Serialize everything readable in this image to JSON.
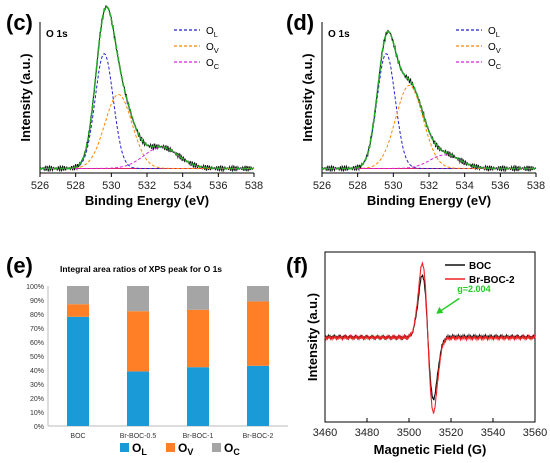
{
  "chart_data": [
    {
      "id": "c",
      "panel_label": "(c)",
      "type": "line",
      "title": "O 1s",
      "xlabel": "Binding Energy (eV)",
      "ylabel": "Intensity (a.u.)",
      "xlim": [
        526,
        538
      ],
      "xticks": [
        526,
        528,
        530,
        532,
        534,
        536,
        538
      ],
      "legend": [
        "O_L",
        "O_V",
        "O_C"
      ],
      "legend_loc": "top-right",
      "colors": {
        "raw": "#111111",
        "fit": "#22aa22",
        "O_L": "#2222cc",
        "O_V": "#ff8800",
        "O_C": "#dd22dd",
        "baseline": "#dd2266"
      },
      "peaks": [
        {
          "name": "O_L",
          "center": 529.6,
          "height": 0.76,
          "fwhm": 1.2
        },
        {
          "name": "O_V",
          "center": 530.4,
          "height": 0.49,
          "fwhm": 1.8
        },
        {
          "name": "O_C",
          "center": 532.8,
          "height": 0.14,
          "fwhm": 2.3
        }
      ]
    },
    {
      "id": "d",
      "panel_label": "(d)",
      "type": "line",
      "title": "O 1s",
      "xlabel": "Binding Energy (eV)",
      "ylabel": "Intensity (a.u.)",
      "xlim": [
        526,
        538
      ],
      "xticks": [
        526,
        528,
        530,
        532,
        534,
        536,
        538
      ],
      "legend": [
        "O_L",
        "O_V",
        "O_C"
      ],
      "legend_loc": "top-right",
      "colors": {
        "raw": "#111111",
        "fit": "#22aa22",
        "O_L": "#2222cc",
        "O_V": "#ff8800",
        "O_C": "#dd22dd",
        "baseline": "#dd2266"
      },
      "peaks": [
        {
          "name": "O_L",
          "center": 529.6,
          "height": 0.76,
          "fwhm": 1.2
        },
        {
          "name": "O_V",
          "center": 530.9,
          "height": 0.55,
          "fwhm": 1.8
        },
        {
          "name": "O_C",
          "center": 532.9,
          "height": 0.09,
          "fwhm": 2.0
        }
      ]
    },
    {
      "id": "e",
      "panel_label": "(e)",
      "type": "bar",
      "stacked": true,
      "title": "Integral area ratios of XPS peak for O 1s",
      "categories": [
        "BOC",
        "Br-BOC-0.5",
        "Br-BOC-1",
        "Br-BOC-2"
      ],
      "series": [
        {
          "name": "O_L",
          "color": "#1a9ad6",
          "values": [
            78,
            39,
            42,
            43
          ]
        },
        {
          "name": "O_V",
          "color": "#ff7f27",
          "values": [
            9,
            43,
            41,
            46
          ]
        },
        {
          "name": "O_C",
          "color": "#a5a5a5",
          "values": [
            13,
            18,
            17,
            11
          ]
        }
      ],
      "ylim": [
        0,
        100
      ],
      "yticks": [
        "0%",
        "10%",
        "20%",
        "30%",
        "40%",
        "50%",
        "60%",
        "70%",
        "80%",
        "90%",
        "100%"
      ],
      "legend_loc": "bottom"
    },
    {
      "id": "f",
      "panel_label": "(f)",
      "type": "line",
      "xlabel": "Magnetic Field (G)",
      "ylabel": "Intensity (a.u.)",
      "xlim": [
        3460,
        3560
      ],
      "xticks": [
        3460,
        3480,
        3500,
        3520,
        3540,
        3560
      ],
      "ylim": [
        -1.1,
        1.1
      ],
      "annotation": "g=2.004",
      "legend_loc": "top-right",
      "series": [
        {
          "name": "BOC",
          "color": "#111111",
          "center": 3509,
          "amplitude": 0.8,
          "offset": 0.0
        },
        {
          "name": "Br-BOC-2",
          "color": "#ee2222",
          "center": 3509,
          "amplitude": 0.96,
          "offset": -0.01
        }
      ]
    }
  ]
}
